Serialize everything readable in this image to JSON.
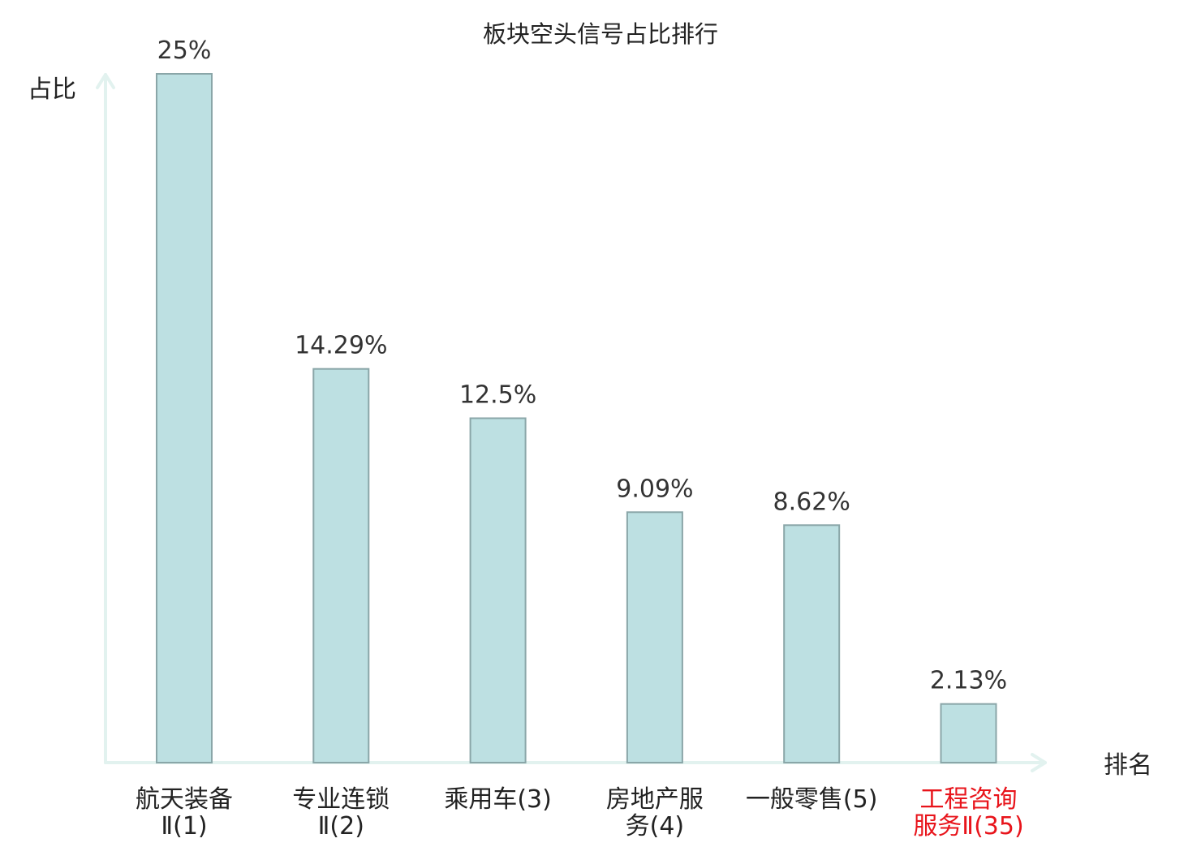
{
  "chart_data": {
    "type": "bar",
    "title": "板块空头信号占比排行",
    "ylabel": "占比",
    "xlabel": "排名",
    "ylim": [
      0,
      25
    ],
    "categories": [
      {
        "lines": [
          "航天装备",
          "Ⅱ(1)"
        ],
        "highlight": false
      },
      {
        "lines": [
          "专业连锁",
          "Ⅱ(2)"
        ],
        "highlight": false
      },
      {
        "lines": [
          "乘用车(3)"
        ],
        "highlight": false
      },
      {
        "lines": [
          "房地产服",
          "务(4)"
        ],
        "highlight": false
      },
      {
        "lines": [
          "一般零售(5)"
        ],
        "highlight": false
      },
      {
        "lines": [
          "工程咨询",
          "服务Ⅱ(35)"
        ],
        "highlight": true
      }
    ],
    "values": [
      25,
      14.29,
      12.5,
      9.09,
      8.62,
      2.13
    ],
    "value_labels": [
      "25%",
      "14.29%",
      "12.5%",
      "9.09%",
      "8.62%",
      "2.13%"
    ],
    "colors": {
      "bar_fill": "#bde0e2",
      "bar_stroke": "#8aa6a8",
      "axis": "#e2f2ef",
      "text": "#222222",
      "highlight_text": "#e8141b"
    }
  }
}
